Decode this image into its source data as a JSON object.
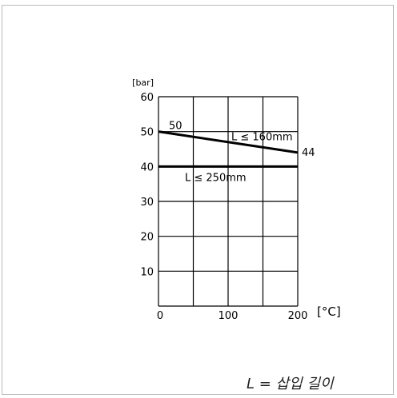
{
  "chart_data": {
    "type": "line",
    "y_unit_label": "[bar]",
    "x_unit_label": "[°C]",
    "xlim": [
      0,
      200
    ],
    "ylim": [
      0,
      60
    ],
    "x_ticks": [
      "0",
      "100",
      "200"
    ],
    "y_ticks": [
      "10",
      "20",
      "30",
      "40",
      "50",
      "60"
    ],
    "grid": true,
    "series": [
      {
        "name": "L ≤ 160mm",
        "x": [
          0,
          200
        ],
        "y": [
          50,
          44
        ],
        "start_label": "50",
        "end_label": "44"
      },
      {
        "name": "L ≤ 250mm",
        "x": [
          0,
          200
        ],
        "y": [
          40,
          40
        ]
      }
    ]
  },
  "footnote": "L = 삽입 길이",
  "colors": {
    "line": "#000000",
    "grid": "#000000",
    "frame": "#b9b9b9"
  }
}
